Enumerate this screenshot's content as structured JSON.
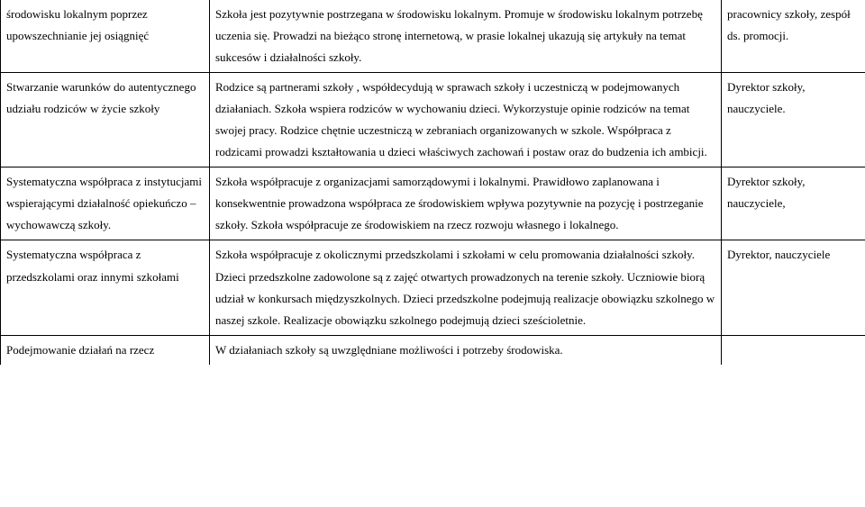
{
  "rows": [
    {
      "col1": "środowisku lokalnym poprzez upowszechnianie jej osiągnięć",
      "col2": "Szkoła jest pozytywnie postrzegana w środowisku lokalnym.\nPromuje w środowisku lokalnym potrzebę uczenia się.\nProwadzi na bieżąco stronę internetową, w prasie lokalnej ukazują się artykuły na temat sukcesów i działalności szkoły.",
      "col3": "pracownicy szkoły, zespół ds. promocji."
    },
    {
      "col1": "Stwarzanie warunków do autentycznego udziału  rodziców w życie szkoły",
      "col2": "Rodzice są partnerami szkoły , współdecydują w sprawach szkoły i uczestniczą w podejmowanych działaniach.\nSzkoła wspiera rodziców w wychowaniu dzieci.\nWykorzystuje opinie rodziców na temat swojej pracy.\nRodzice chętnie uczestniczą w zebraniach organizowanych w szkole.\nWspółpraca z rodzicami prowadzi kształtowania u dzieci właściwych zachowań i postaw oraz do budzenia ich ambicji.",
      "col3": "Dyrektor szkoły, nauczyciele."
    },
    {
      "col1": "Systematyczna współpraca z instytucjami wspierającymi działalność opiekuńczo – wychowawczą szkoły.",
      "col2": "Szkoła współpracuje z organizacjami samorządowymi i lokalnymi.\nPrawidłowo zaplanowana i konsekwentnie prowadzona współpraca ze środowiskiem wpływa pozytywnie na pozycję i postrzeganie szkoły.\nSzkoła współpracuje ze środowiskiem na rzecz rozwoju własnego i lokalnego.",
      "col3": "Dyrektor szkoły, nauczyciele,"
    },
    {
      "col1": "Systematyczna współpraca z przedszkolami oraz innymi szkołami",
      "col2": "Szkoła współpracuje z okolicznymi przedszkolami i szkołami w celu promowania działalności szkoły.\nDzieci przedszkolne zadowolone są z zajęć otwartych prowadzonych na terenie szkoły.\nUczniowie biorą udział w konkursach międzyszkolnych.\nDzieci przedszkolne podejmują realizacje obowiązku szkolnego w naszej szkole.\nRealizacje obowiązku szkolnego podejmują dzieci sześcioletnie.",
      "col3": "Dyrektor, nauczyciele"
    },
    {
      "col1": "Podejmowanie działań na rzecz",
      "col2": "W działaniach szkoły są uwzględniane możliwości i potrzeby środowiska.",
      "col3": ""
    }
  ]
}
